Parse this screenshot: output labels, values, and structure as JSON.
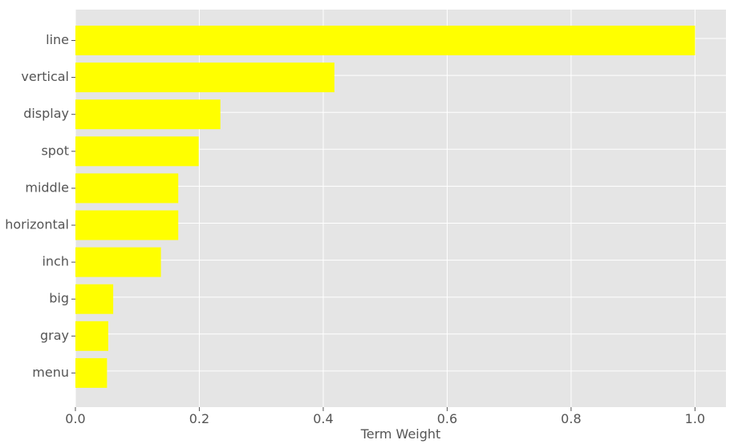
{
  "chart_data": {
    "type": "bar",
    "orientation": "horizontal",
    "title": "",
    "xlabel": "Term Weight",
    "ylabel": "",
    "xlim": [
      0,
      1.05
    ],
    "xticks": [
      0.0,
      0.2,
      0.4,
      0.6,
      0.8,
      1.0
    ],
    "xtick_labels": [
      "0.0",
      "0.2",
      "0.4",
      "0.6",
      "0.8",
      "1.0"
    ],
    "grid": true,
    "legend": "none",
    "categories": [
      "line",
      "vertical",
      "display",
      "spot",
      "middle",
      "horizontal",
      "inch",
      "big",
      "gray",
      "menu"
    ],
    "values": [
      1.0,
      0.418,
      0.234,
      0.199,
      0.166,
      0.166,
      0.138,
      0.061,
      0.053,
      0.051
    ],
    "colors": {
      "bar": "#ffff00",
      "background": "#e5e5e5",
      "grid": "#ffffff",
      "text": "#555555"
    }
  }
}
